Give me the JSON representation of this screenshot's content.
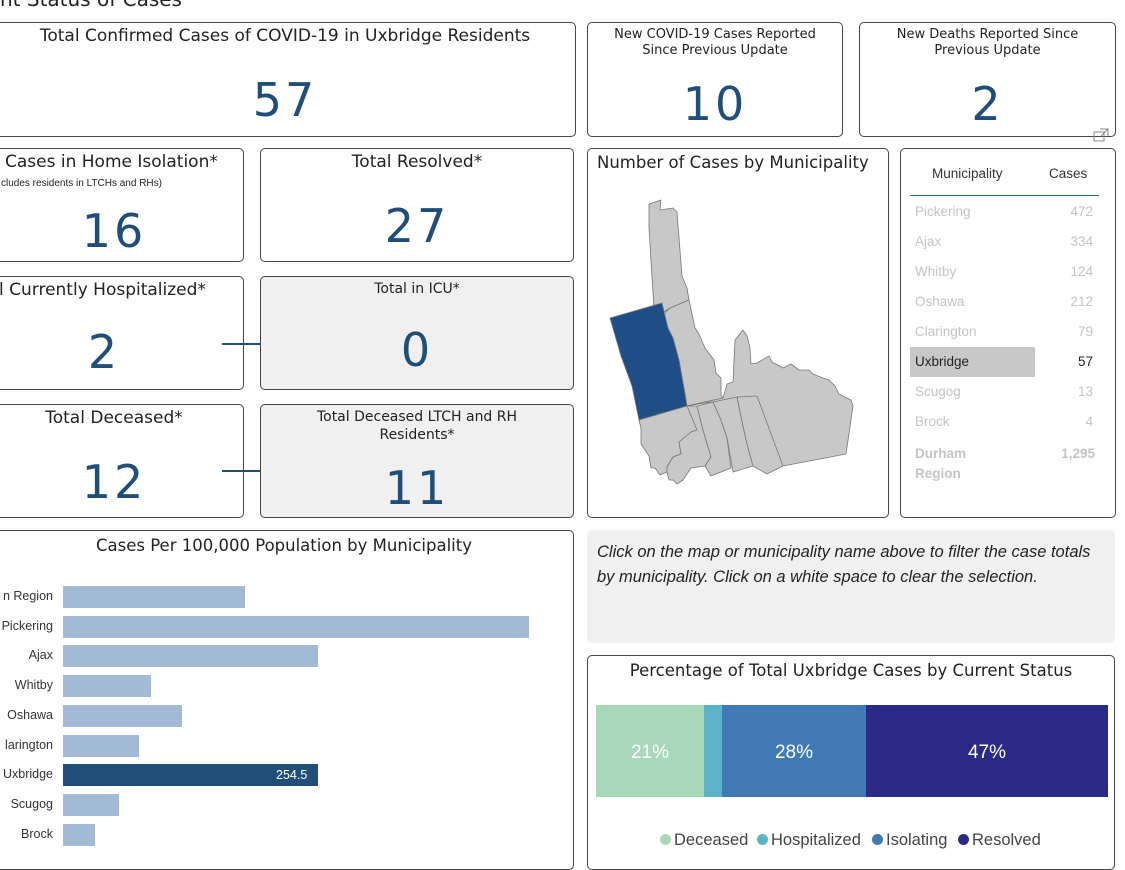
{
  "page_title": "nt Status of Cases",
  "cards": {
    "total_confirmed": {
      "title": "Total Confirmed Cases of COVID-19 in Uxbridge Residents",
      "value": "57"
    },
    "new_cases": {
      "title": "New COVID-19 Cases Reported Since Previous Update",
      "value": "10"
    },
    "new_deaths": {
      "title": "New Deaths Reported Since Previous Update",
      "value": "2"
    },
    "home_isolation": {
      "title": "Cases in Home Isolation*",
      "subtitle": "cludes residents in LTCHs and RHs)",
      "value": "16"
    },
    "resolved": {
      "title": "Total Resolved*",
      "value": "27"
    },
    "hospitalized": {
      "title": "l Currently Hospitalized*",
      "value": "2"
    },
    "icu": {
      "title": "Total in ICU*",
      "value": "0"
    },
    "deceased": {
      "title": "Total Deceased*",
      "value": "12"
    },
    "deceased_ltch": {
      "title": "Total Deceased LTCH and RH Residents*",
      "value": "11"
    }
  },
  "map": {
    "title": "Number of Cases by Municipality",
    "highlight_color": "#1f4e87",
    "base_color": "#c8c8c8"
  },
  "muni_table": {
    "headers": [
      "Municipality",
      "Cases"
    ],
    "rows": [
      {
        "name": "Pickering",
        "cases": "472"
      },
      {
        "name": "Ajax",
        "cases": "334"
      },
      {
        "name": "Whitby",
        "cases": "124"
      },
      {
        "name": "Oshawa",
        "cases": "212"
      },
      {
        "name": "Clarington",
        "cases": "79"
      },
      {
        "name": "Uxbridge",
        "cases": "57",
        "selected": true
      },
      {
        "name": "Scugog",
        "cases": "13"
      },
      {
        "name": "Brock",
        "cases": "4"
      }
    ],
    "total_label": "Durham Region",
    "total_value": "1,295"
  },
  "note": "Click on the map or municipality name above to filter the case totals by municipality. Click on a white space to clear the selection.",
  "chart_data": [
    {
      "type": "bar",
      "orientation": "horizontal",
      "title": "Cases Per 100,000 Population by Municipality",
      "categories": [
        "n Region",
        "Pickering",
        "Ajax",
        "Whitby",
        "Oshawa",
        "larington",
        "Uxbridge",
        "Scugog",
        "Brock"
      ],
      "values": [
        182,
        465,
        254,
        88,
        119,
        76,
        254.5,
        56,
        32
      ],
      "highlight": "Uxbridge",
      "data_labels": {
        "Uxbridge": "254.5"
      },
      "colors": {
        "default": "#a2bad3",
        "highlight": "#1f4e79"
      }
    },
    {
      "type": "bar",
      "orientation": "stacked-100",
      "title": "Percentage of Total Uxbridge Cases by Current Status",
      "series": [
        {
          "name": "Deceased",
          "value": 21,
          "label": "21%",
          "color": "#a8d8b9"
        },
        {
          "name": "Hospitalized",
          "value": 3.5,
          "label": "",
          "color": "#5ab4c5"
        },
        {
          "name": "Isolating",
          "value": 28,
          "label": "28%",
          "color": "#3f7ab5"
        },
        {
          "name": "Resolved",
          "value": 47,
          "label": "47%",
          "color": "#2b2a86"
        }
      ],
      "legend_position": "bottom"
    }
  ],
  "icons": {
    "expand": "expand-icon",
    "arrow": "right-arrow-icon"
  }
}
